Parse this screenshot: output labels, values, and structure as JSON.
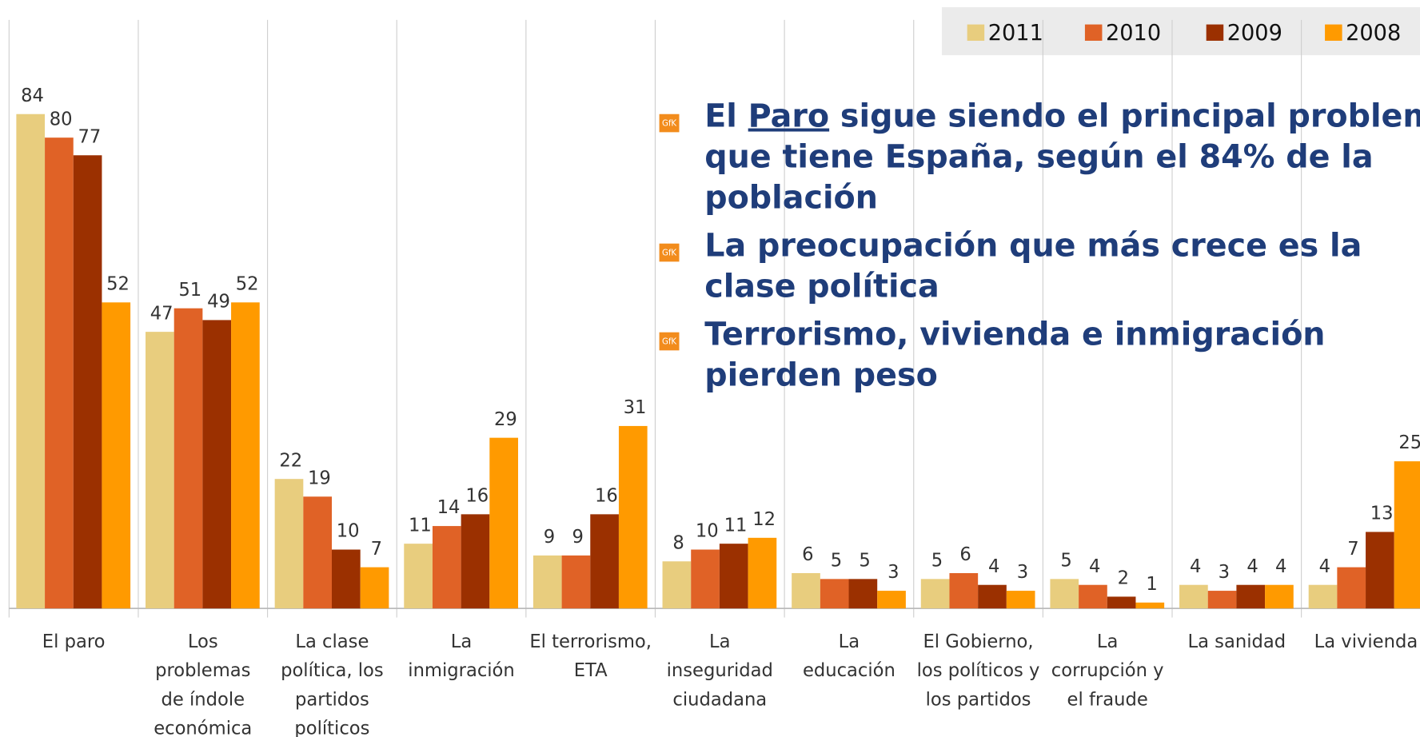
{
  "chart_data": {
    "type": "bar",
    "categories": [
      "El paro",
      "Los\nproblemas\nde índole\neconómica",
      "La clase\npolítica, los\npartidos\npolíticos",
      "La\ninmigración",
      "El terrorismo,\nETA",
      "La\ninseguridad\nciudadana",
      "La\neducación",
      "El Gobierno,\nlos políticos y\nlos partidos",
      "La\ncorrupción y\nel fraude",
      "La sanidad",
      "La vivienda"
    ],
    "series": [
      {
        "name": "2011",
        "color": "#e8cd7e",
        "values": [
          84,
          47,
          22,
          11,
          9,
          8,
          6,
          5,
          5,
          4,
          4
        ]
      },
      {
        "name": "2010",
        "color": "#e06226",
        "values": [
          80,
          51,
          19,
          14,
          9,
          10,
          5,
          6,
          4,
          3,
          7
        ]
      },
      {
        "name": "2009",
        "color": "#9b3000",
        "values": [
          77,
          49,
          10,
          16,
          16,
          11,
          5,
          4,
          2,
          4,
          13
        ]
      },
      {
        "name": "2008",
        "color": "#ff9a00",
        "values": [
          52,
          52,
          7,
          29,
          31,
          12,
          3,
          3,
          1,
          4,
          25
        ]
      }
    ],
    "ylim": [
      0,
      100
    ],
    "legend": "top-right",
    "annotations": {
      "icon_label": "GfK",
      "bullets": [
        {
          "lines": [
            "El Paro sigue siendo el principal problema",
            "que tiene España, según el 84% de la",
            "población"
          ],
          "emphasis": "Paro"
        },
        {
          "lines": [
            "La preocupación que más crece es la",
            "clase política"
          ]
        },
        {
          "lines": [
            "Terrorismo, vivienda e inmigración",
            "pierden peso"
          ]
        }
      ]
    }
  }
}
